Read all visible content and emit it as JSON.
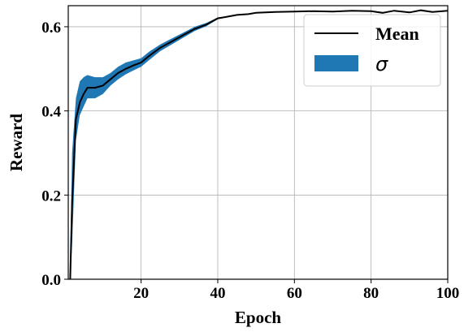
{
  "chart_data": {
    "type": "line",
    "title": "",
    "xlabel": "Epoch",
    "ylabel": "Reward",
    "xlim": [
      1,
      100
    ],
    "ylim": [
      0,
      0.65
    ],
    "xticks": [
      20,
      40,
      60,
      80,
      100
    ],
    "yticks": [
      0.0,
      0.2,
      0.4,
      0.6
    ],
    "xtick_labels": [
      "20",
      "40",
      "60",
      "80",
      "100"
    ],
    "ytick_labels": [
      "0.0",
      "0.2",
      "0.4",
      "0.6"
    ],
    "grid": true,
    "legend_position": "top-right",
    "colors": {
      "mean": "#000000",
      "band": "#1f77b4",
      "grid": "#b0b0b0"
    },
    "series": [
      {
        "name": "Mean",
        "x": [
          1.5,
          2,
          3,
          4,
          5,
          6,
          8,
          10,
          12,
          14,
          16,
          18,
          20,
          22,
          25,
          28,
          31,
          34,
          37,
          40,
          42,
          45,
          48,
          50,
          55,
          60,
          65,
          70,
          75,
          80,
          83,
          86,
          90,
          93,
          96,
          100
        ],
        "y": [
          0.0,
          0.18,
          0.38,
          0.42,
          0.44,
          0.455,
          0.455,
          0.46,
          0.475,
          0.49,
          0.5,
          0.508,
          0.515,
          0.53,
          0.55,
          0.565,
          0.58,
          0.595,
          0.605,
          0.62,
          0.623,
          0.628,
          0.63,
          0.633,
          0.635,
          0.636,
          0.637,
          0.636,
          0.638,
          0.637,
          0.633,
          0.638,
          0.634,
          0.639,
          0.635,
          0.638
        ]
      },
      {
        "name": "σ",
        "x": [
          1.5,
          2,
          3,
          4,
          5,
          6,
          8,
          10,
          12,
          14,
          16,
          18,
          20,
          22,
          25,
          28,
          31,
          34,
          37,
          40,
          42
        ],
        "upper": [
          0.04,
          0.3,
          0.43,
          0.47,
          0.48,
          0.485,
          0.48,
          0.48,
          0.49,
          0.505,
          0.515,
          0.52,
          0.525,
          0.54,
          0.558,
          0.572,
          0.586,
          0.6,
          0.609,
          0.622,
          0.623
        ],
        "lower": [
          0.0,
          0.08,
          0.33,
          0.39,
          0.41,
          0.43,
          0.43,
          0.44,
          0.46,
          0.475,
          0.487,
          0.496,
          0.505,
          0.52,
          0.542,
          0.558,
          0.574,
          0.59,
          0.601,
          0.618,
          0.622
        ]
      }
    ]
  }
}
